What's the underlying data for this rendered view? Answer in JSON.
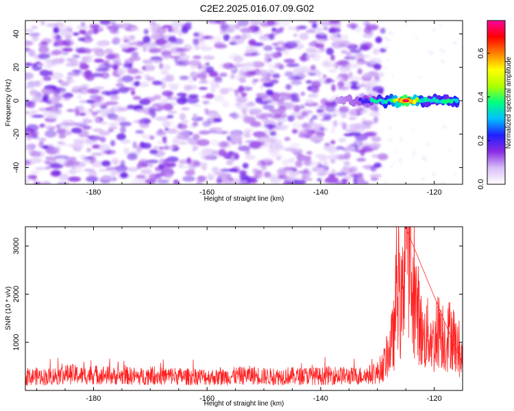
{
  "page": {
    "title": "C2E2.2025.016.07.09.G02"
  },
  "chart_data": [
    {
      "type": "heatmap",
      "name": "spectrogram",
      "xlabel": "Height of straight line (km)",
      "ylabel": "Frequency (Hz)",
      "xlim": [
        -192,
        -115
      ],
      "ylim": [
        -50,
        48
      ],
      "x_ticks": [
        -180,
        -160,
        -140,
        -120
      ],
      "y_ticks": [
        -40,
        -20,
        0,
        20,
        40
      ],
      "data_extent_x": [
        -192,
        -129
      ],
      "signal": {
        "x_range": [
          -137,
          -116
        ],
        "center_frequency": 0,
        "peak_x": -125,
        "peak_amplitude": 0.75
      },
      "colorbar": {
        "label": "Normalized spectral amplitude",
        "range": [
          0.0,
          0.75
        ],
        "ticks": [
          "0.0",
          "0.2",
          "0.4",
          "0.6"
        ],
        "colors": [
          "#ffffff",
          "#d8bff7",
          "#8a2be2",
          "#2020ff",
          "#00c0ff",
          "#00ff80",
          "#b0ff00",
          "#ffff00",
          "#ff8000",
          "#ff0000",
          "#ff00a0"
        ]
      }
    },
    {
      "type": "line",
      "name": "snr",
      "xlabel": "Height of straight line (km)",
      "ylabel": "SNR (10 * v/v)",
      "xlim": [
        -192,
        -115
      ],
      "ylim": [
        0,
        3400
      ],
      "x_ticks": [
        -180,
        -160,
        -140,
        -120
      ],
      "y_ticks": [
        1000,
        2000,
        3000
      ],
      "color": "#ff2020",
      "series": [
        {
          "name": "SNR",
          "x": [
            -192,
            -190,
            -188,
            -186,
            -184,
            -182,
            -180,
            -178,
            -176,
            -174,
            -172,
            -170,
            -168,
            -166,
            -164,
            -162,
            -160,
            -158,
            -156,
            -154,
            -152,
            -150,
            -148,
            -146,
            -144,
            -142,
            -140,
            -138,
            -136,
            -134,
            -132,
            -130,
            -129,
            -128,
            -127,
            -126.5,
            -126,
            -125.5,
            -125,
            -124.5,
            -124,
            -123,
            -122,
            -121,
            -120,
            -119,
            -118,
            -117,
            -116,
            -115
          ],
          "values": [
            220,
            240,
            230,
            260,
            280,
            250,
            270,
            260,
            240,
            250,
            230,
            260,
            240,
            250,
            230,
            240,
            230,
            220,
            240,
            250,
            260,
            240,
            230,
            250,
            240,
            250,
            240,
            260,
            250,
            240,
            260,
            280,
            380,
            600,
            900,
            1950,
            1200,
            1500,
            3380,
            2400,
            1500,
            1300,
            800,
            900,
            700,
            1050,
            750,
            950,
            650,
            450
          ]
        }
      ]
    }
  ]
}
